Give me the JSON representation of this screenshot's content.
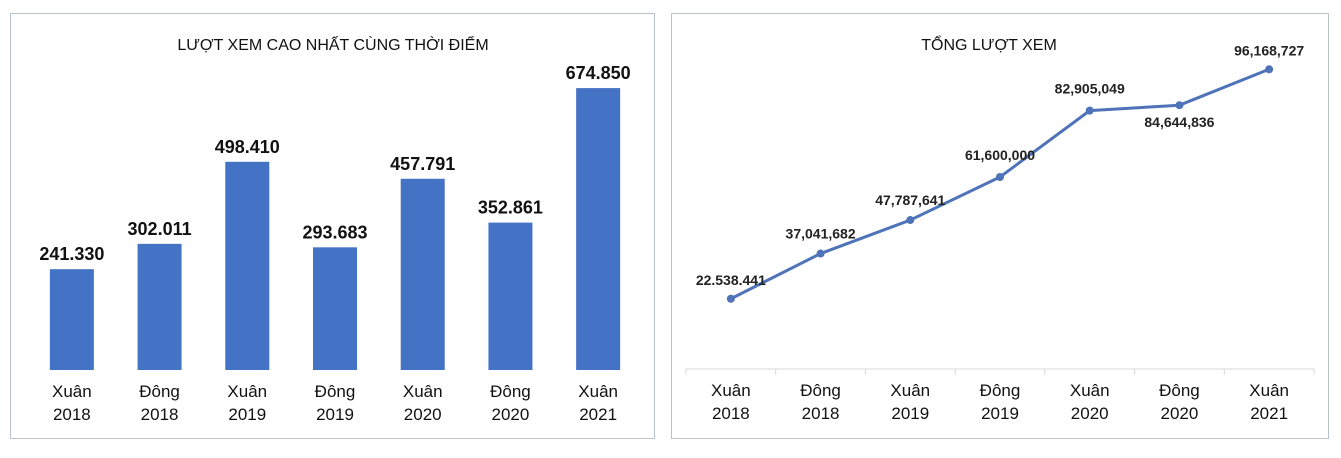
{
  "chart_data": [
    {
      "type": "bar",
      "title": "LƯỢT XEM CAO NHẤT CÙNG THỜI ĐIỂM",
      "categories": [
        [
          "Xuân",
          "2018"
        ],
        [
          "Đông",
          "2018"
        ],
        [
          "Xuân",
          "2019"
        ],
        [
          "Đông",
          "2019"
        ],
        [
          "Xuân",
          "2020"
        ],
        [
          "Đông",
          "2020"
        ],
        [
          "Xuân",
          "2021"
        ]
      ],
      "values": [
        241330,
        302011,
        498410,
        293683,
        457791,
        352861,
        674850
      ],
      "labels": [
        "241.330",
        "302.011",
        "498.410",
        "293.683",
        "457.791",
        "352.861",
        "674.850"
      ],
      "ylim": [
        0,
        790000
      ],
      "color": "#4472c4",
      "grid": false
    },
    {
      "type": "line",
      "title": "TỔNG LƯỢT XEM",
      "categories": [
        [
          "Xuân",
          "2018"
        ],
        [
          "Đông",
          "2018"
        ],
        [
          "Xuân",
          "2019"
        ],
        [
          "Đông",
          "2019"
        ],
        [
          "Xuân",
          "2020"
        ],
        [
          "Đông",
          "2020"
        ],
        [
          "Xuân",
          "2021"
        ]
      ],
      "values": [
        22538441,
        37041682,
        47787641,
        61600000,
        82905049,
        84644836,
        96168727
      ],
      "labels": [
        "22.538.441",
        "37,041,682",
        "47,787,641",
        "61,600,000",
        "82,905,049",
        "84,644,836",
        "96,168,727"
      ],
      "ylim": [
        0,
        120000000
      ],
      "color": "#4f73b8",
      "grid": false
    }
  ]
}
